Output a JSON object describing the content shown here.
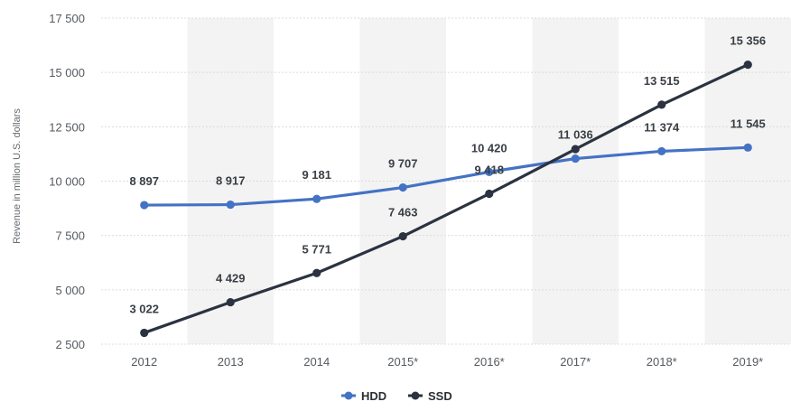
{
  "chart_data": {
    "type": "line",
    "title": "",
    "xlabel": "",
    "ylabel": "Revenue in million U.S. dollars",
    "categories": [
      "2012",
      "2013",
      "2014",
      "2015*",
      "2016*",
      "2017*",
      "2018*",
      "2019*"
    ],
    "y_ticks": [
      "2 500",
      "5 000",
      "7 500",
      "10 000",
      "12 500",
      "15 000",
      "17 500"
    ],
    "ylim": [
      2500,
      17500
    ],
    "grid": true,
    "legend_position": "bottom-center",
    "series": [
      {
        "name": "HDD",
        "color": "#4472c4",
        "values": [
          8897,
          8917,
          9181,
          9707,
          10420,
          11036,
          11374,
          11545
        ],
        "labels": [
          "8 897",
          "8 917",
          "9 181",
          "9 707",
          "10 420",
          "11 036",
          "11 374",
          "11 545"
        ]
      },
      {
        "name": "SSD",
        "color": "#2b3240",
        "values": [
          3022,
          4429,
          5771,
          7463,
          9418,
          11470,
          13515,
          15356
        ],
        "labels": [
          "3 022",
          "4 429",
          "5 771",
          "7 463",
          "9 418",
          "",
          "13 515",
          "15 356"
        ]
      }
    ]
  }
}
